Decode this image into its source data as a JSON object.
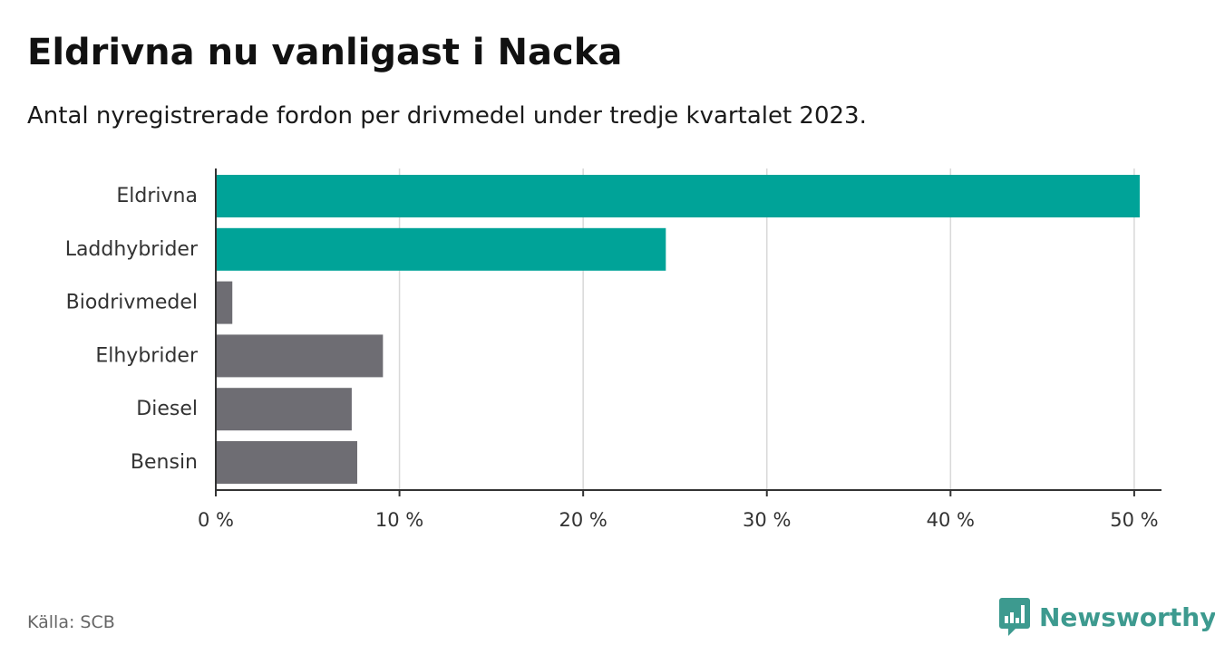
{
  "title": "Eldrivna nu vanligast i Nacka",
  "subtitle": "Antal nyregistrerade fordon per drivmedel under tredje kvartalet 2023.",
  "source": "Källa: SCB",
  "brand": {
    "name": "Newsworthy",
    "color": "#3d9a8f"
  },
  "chart_data": {
    "type": "bar",
    "orientation": "horizontal",
    "categories": [
      "Eldrivna",
      "Laddhybrider",
      "Biodrivmedel",
      "Elhybrider",
      "Diesel",
      "Bensin"
    ],
    "values": [
      50.3,
      24.5,
      0.9,
      9.1,
      7.4,
      7.7
    ],
    "colors": [
      "#00a398",
      "#00a398",
      "#6e6d73",
      "#6e6d73",
      "#6e6d73",
      "#6e6d73"
    ],
    "xlim": [
      0,
      50.4
    ],
    "ticks": [
      0,
      10,
      20,
      30,
      40,
      50
    ],
    "tick_labels": [
      "0 %",
      "10 %",
      "20 %",
      "30 %",
      "40 %",
      "50 %"
    ],
    "unit": "%",
    "grid": true
  }
}
